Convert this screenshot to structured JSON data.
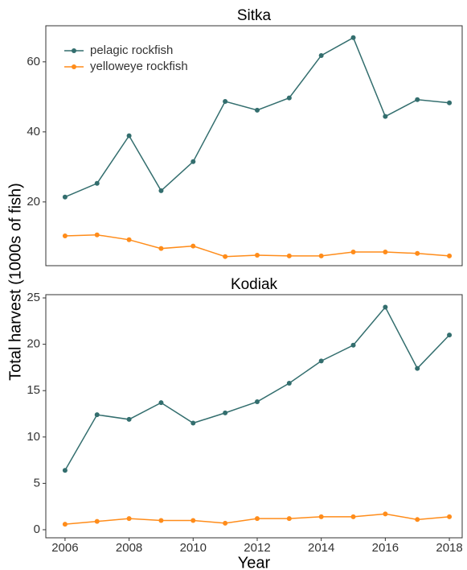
{
  "chart_data": [
    {
      "type": "line",
      "title": "Sitka",
      "ylabel": "Total harvest (1000s of fish)",
      "x": [
        2006,
        2007,
        2008,
        2009,
        2010,
        2011,
        2012,
        2013,
        2014,
        2015,
        2016,
        2017,
        2018
      ],
      "series": [
        {
          "name": "pelagic rockfish",
          "color": "#336e6e",
          "values": [
            21.4,
            25.3,
            38.9,
            23.2,
            31.5,
            48.7,
            46.2,
            49.7,
            61.8,
            66.9,
            44.4,
            49.2,
            48.3
          ]
        },
        {
          "name": "yelloweye rockfish",
          "color": "#ff8c1a",
          "values": [
            10.3,
            10.6,
            9.2,
            6.7,
            7.4,
            4.4,
            4.8,
            4.6,
            4.6,
            5.7,
            5.7,
            5.3,
            4.6
          ]
        }
      ],
      "xlim": [
        2005.4,
        2018.4
      ],
      "ylim": [
        1.8,
        70.3
      ],
      "yticks": [
        20,
        40,
        60
      ],
      "legend": "upper left",
      "grid": false
    },
    {
      "type": "line",
      "title": "Kodiak",
      "xlabel": "Year",
      "x": [
        2006,
        2007,
        2008,
        2009,
        2010,
        2011,
        2012,
        2013,
        2014,
        2015,
        2016,
        2017,
        2018
      ],
      "series": [
        {
          "color": "#336e6e",
          "values": [
            6.4,
            12.4,
            11.9,
            13.7,
            11.5,
            12.6,
            13.8,
            15.8,
            18.2,
            19.9,
            24.0,
            17.4,
            21.0
          ]
        },
        {
          "color": "#ff8c1a",
          "values": [
            0.6,
            0.9,
            1.2,
            1.0,
            1.0,
            0.7,
            1.2,
            1.2,
            1.4,
            1.4,
            1.7,
            1.1,
            1.4
          ]
        }
      ],
      "xlim": [
        2005.4,
        2018.4
      ],
      "ylim": [
        -0.87,
        25.35
      ],
      "xticks": [
        2006,
        2008,
        2010,
        2012,
        2014,
        2016,
        2018
      ],
      "yticks": [
        0,
        5,
        10,
        15,
        20,
        25
      ],
      "grid": false
    }
  ]
}
